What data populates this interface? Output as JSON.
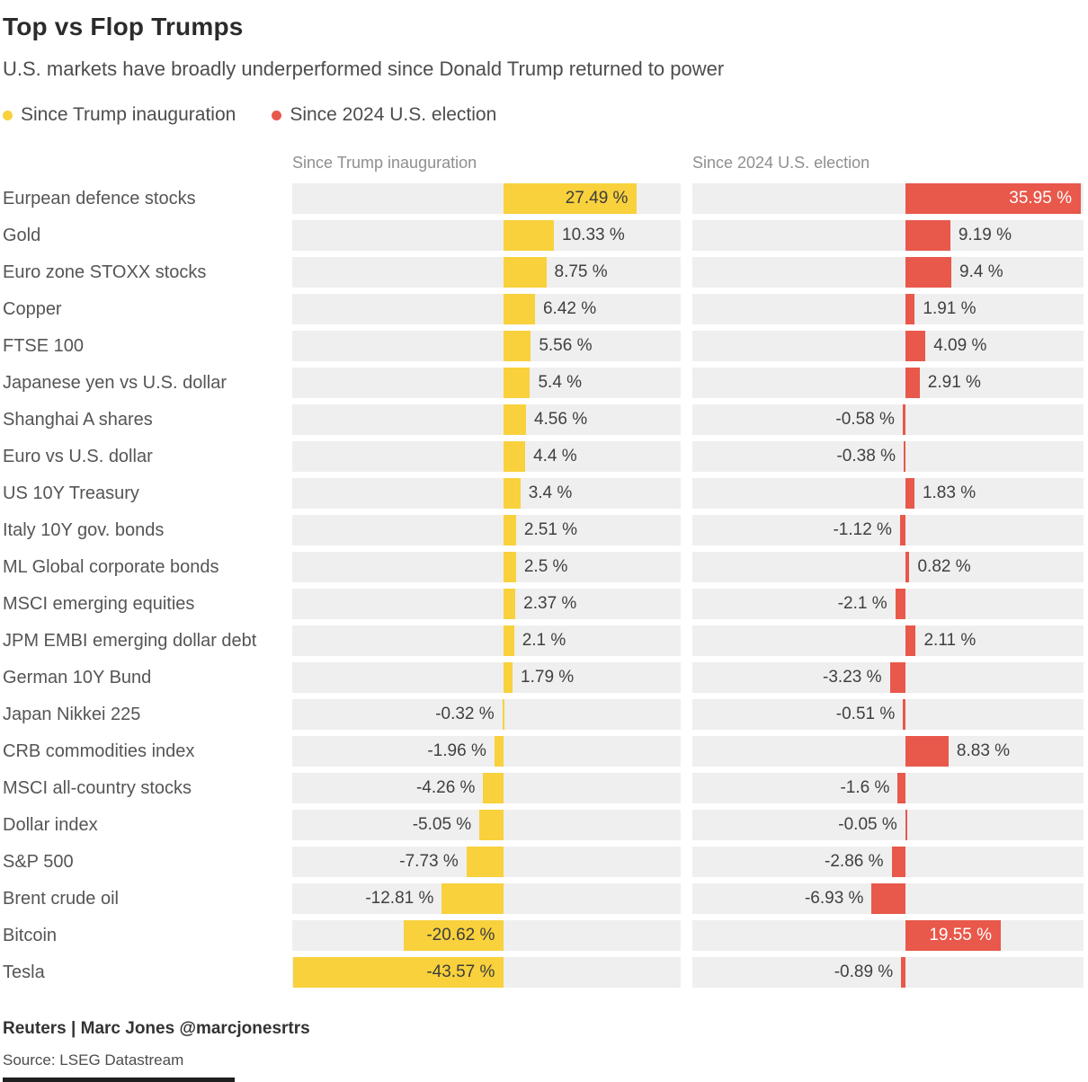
{
  "header": {
    "title": "Top vs Flop Trumps",
    "subtitle": "U.S. markets have broadly underperformed since Donald Trump returned to power"
  },
  "legend": [
    {
      "label": "Since Trump inauguration",
      "color": "#F8D13C"
    },
    {
      "label": "Since 2024 U.S. election",
      "color": "#E8584B"
    }
  ],
  "chart_data": {
    "type": "bar",
    "orientation": "horizontal",
    "title": "Top vs Flop Trumps",
    "subtitle": "U.S. markets have broadly underperformed since Donald Trump returned to power",
    "legend_position": "top",
    "grid": false,
    "track_color": "#efefef",
    "xlim": [
      -43.7,
      36.5
    ],
    "value_suffix": " %",
    "columns": [
      {
        "header": "Since Trump inauguration",
        "color": "#F8D13C",
        "inside_label_color": "#3d3d3d"
      },
      {
        "header": "Since 2024 U.S. election",
        "color": "#E8584B",
        "inside_label_color": "#ffffff"
      }
    ],
    "categories": [
      "Eurpean defence stocks",
      "Gold",
      "Euro zone STOXX stocks",
      "Copper",
      "FTSE 100",
      "Japanese yen vs U.S. dollar",
      "Shanghai A shares",
      "Euro vs U.S. dollar",
      "US 10Y Treasury",
      "Italy 10Y gov. bonds",
      "ML Global corporate bonds",
      "MSCI emerging equities",
      "JPM EMBI emerging dollar debt",
      "German 10Y Bund",
      "Japan Nikkei 225",
      "CRB commodities index",
      "MSCI all-country stocks",
      "Dollar index",
      "S&P 500",
      "Brent crude oil",
      "Bitcoin",
      "Tesla"
    ],
    "series": [
      {
        "name": "Since Trump inauguration",
        "values": [
          27.49,
          10.33,
          8.75,
          6.42,
          5.56,
          5.4,
          4.56,
          4.4,
          3.4,
          2.51,
          2.5,
          2.37,
          2.1,
          1.79,
          -0.32,
          -1.96,
          -4.26,
          -5.05,
          -7.73,
          -12.81,
          -20.62,
          -43.57
        ]
      },
      {
        "name": "Since 2024 U.S. election",
        "values": [
          35.95,
          9.19,
          9.4,
          1.91,
          4.09,
          2.91,
          -0.58,
          -0.38,
          1.83,
          -1.12,
          0.82,
          -2.1,
          2.11,
          -3.23,
          -0.51,
          8.83,
          -1.6,
          -0.05,
          -2.86,
          -6.93,
          19.55,
          -0.89
        ]
      }
    ]
  },
  "footer": {
    "byline": "Reuters | Marc Jones @marcjonesrtrs",
    "source": "Source: LSEG Datastream"
  }
}
